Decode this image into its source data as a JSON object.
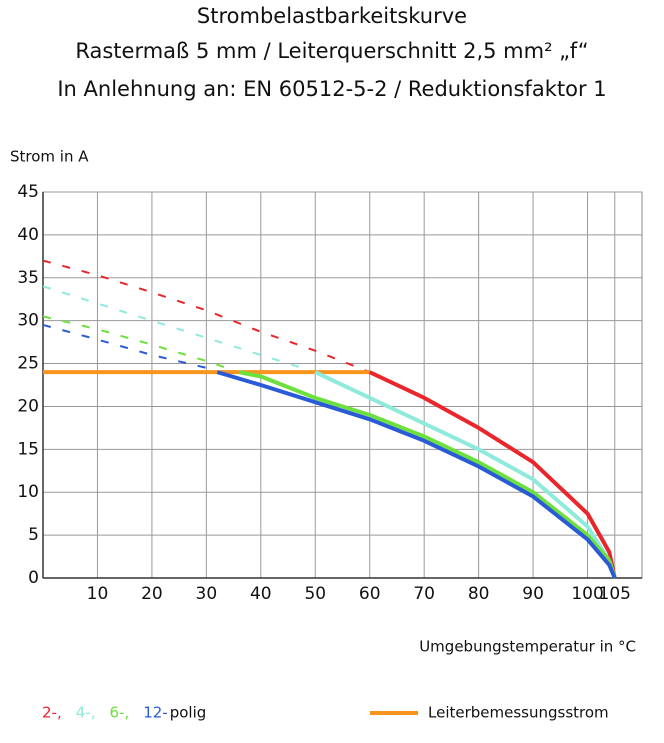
{
  "chart_data": {
    "type": "line",
    "title": "Strombelastbarkeitskurve",
    "subtitle": [
      "Rastermaß 5 mm / Leiterquerschnitt 2,5 mm² „f“",
      "In Anlehnung an: EN 60512-5-2 / Reduktionsfaktor 1"
    ],
    "y_label": "Strom in A",
    "x_label": "Umgebungstemperatur in  °C",
    "xlim": [
      0,
      110
    ],
    "ylim": [
      0,
      45
    ],
    "xticks": [
      10,
      20,
      30,
      40,
      50,
      60,
      70,
      80,
      90,
      100,
      105
    ],
    "yticks": [
      0,
      5,
      10,
      15,
      20,
      25,
      30,
      35,
      40,
      45
    ],
    "grid": true,
    "legend_suffix": "polig",
    "series": [
      {
        "name": "2-,",
        "color": "#e8262b",
        "solid_from": 60,
        "x": [
          0,
          10,
          20,
          30,
          40,
          50,
          60,
          70,
          80,
          90,
          100,
          104,
          105
        ],
        "values": [
          37,
          35.3,
          33.3,
          31.2,
          28.7,
          26.5,
          24,
          21,
          17.5,
          13.5,
          7.5,
          3,
          0
        ]
      },
      {
        "name": "4-,",
        "color": "#8eeadb",
        "solid_from": 50,
        "x": [
          0,
          10,
          20,
          30,
          40,
          50,
          60,
          70,
          80,
          90,
          100,
          104,
          105
        ],
        "values": [
          34,
          32,
          30,
          28,
          26,
          24,
          21,
          18,
          15,
          11.5,
          6,
          2,
          0
        ]
      },
      {
        "name": "6-,",
        "color": "#6ce03c",
        "solid_from": 36,
        "x": [
          0,
          10,
          20,
          30,
          36,
          40,
          50,
          60,
          70,
          80,
          90,
          100,
          104,
          105
        ],
        "values": [
          30.5,
          29,
          27.2,
          25.3,
          24,
          23.5,
          21,
          19,
          16.5,
          13.5,
          10,
          5,
          2,
          0
        ]
      },
      {
        "name": "12-",
        "color": "#2a5bd7",
        "solid_from": 32,
        "x": [
          0,
          10,
          20,
          30,
          32,
          40,
          50,
          60,
          70,
          80,
          90,
          100,
          104,
          105
        ],
        "values": [
          29.5,
          27.8,
          26,
          24.5,
          24,
          22.5,
          20.5,
          18.5,
          16,
          13,
          9.5,
          4.5,
          1.5,
          0
        ]
      }
    ],
    "reference": {
      "name": "Leiterbemessungsstrom",
      "color": "#f7941d",
      "x": [
        0,
        60
      ],
      "values": [
        24,
        24
      ]
    }
  }
}
